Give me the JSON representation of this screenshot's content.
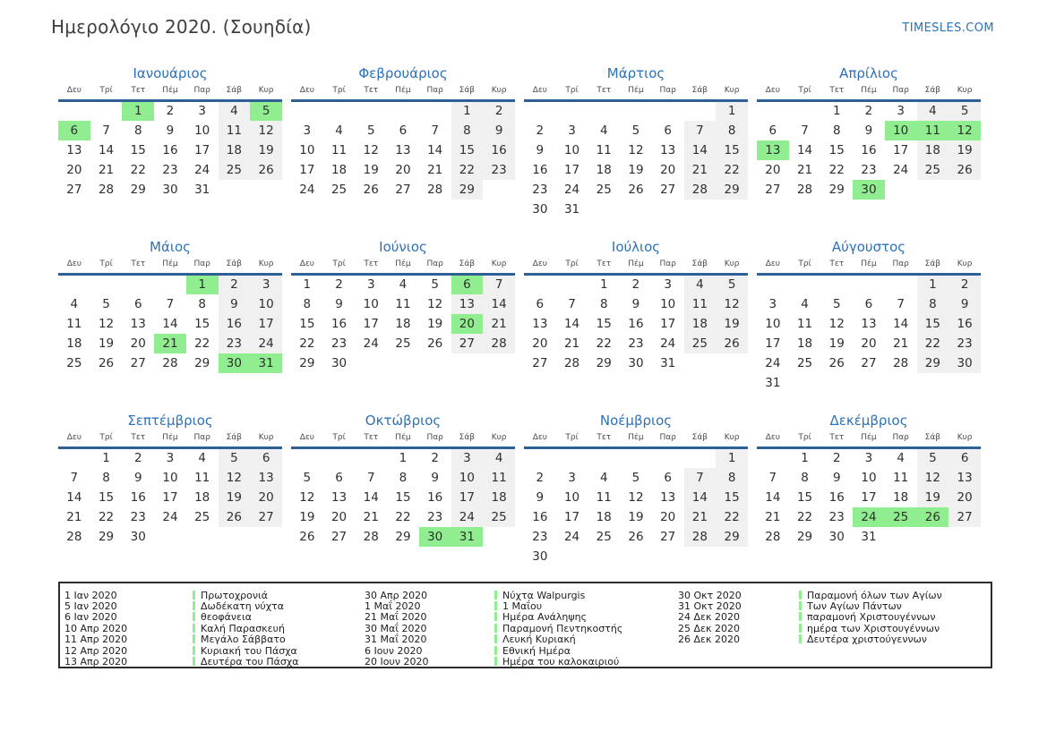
{
  "page": {
    "title": "Ημερολόγιο 2020. (Σουηδία)",
    "site_link": "TIMESLES.COM"
  },
  "calendar": {
    "day_headers": [
      "Δευ",
      "Τρί",
      "Τετ",
      "Πέμ",
      "Παρ",
      "Σάβ",
      "Κυρ"
    ],
    "months": [
      {
        "name": "Ιανουάριος",
        "first_dow": 2,
        "days": 31,
        "holidays": [
          1,
          5,
          6
        ]
      },
      {
        "name": "Φεβρουάριος",
        "first_dow": 5,
        "days": 29,
        "holidays": []
      },
      {
        "name": "Μάρτιος",
        "first_dow": 6,
        "days": 31,
        "holidays": []
      },
      {
        "name": "Απρίλιος",
        "first_dow": 2,
        "days": 30,
        "holidays": [
          10,
          11,
          12,
          13,
          30
        ]
      },
      {
        "name": "Μάιος",
        "first_dow": 4,
        "days": 31,
        "holidays": [
          1,
          21,
          30,
          31
        ]
      },
      {
        "name": "Ιούνιος",
        "first_dow": 0,
        "days": 30,
        "holidays": [
          6,
          20
        ]
      },
      {
        "name": "Ιούλιος",
        "first_dow": 2,
        "days": 31,
        "holidays": []
      },
      {
        "name": "Αύγουστος",
        "first_dow": 5,
        "days": 31,
        "holidays": []
      },
      {
        "name": "Σεπτέμβριος",
        "first_dow": 1,
        "days": 30,
        "holidays": []
      },
      {
        "name": "Οκτώβριος",
        "first_dow": 3,
        "days": 31,
        "holidays": [
          30,
          31
        ]
      },
      {
        "name": "Νοέμβριος",
        "first_dow": 6,
        "days": 30,
        "holidays": []
      },
      {
        "name": "Δεκέμβριος",
        "first_dow": 1,
        "days": 31,
        "holidays": [
          24,
          25,
          26
        ]
      }
    ]
  },
  "legend": {
    "groups": [
      {
        "entries": [
          {
            "date": "1 Ιαν 2020",
            "name": "Πρωτοχρονιά"
          },
          {
            "date": "5 Ιαν 2020",
            "name": "Δωδέκατη νύχτα"
          },
          {
            "date": "6 Ιαν 2020",
            "name": "θεοφάνεια"
          },
          {
            "date": "10 Απρ 2020",
            "name": "Καλή Παρασκευή"
          },
          {
            "date": "11 Απρ 2020",
            "name": "Μεγάλο Σάββατο"
          },
          {
            "date": "12 Απρ 2020",
            "name": "Κυριακή του Πάσχα"
          },
          {
            "date": "13 Απρ 2020",
            "name": "Δευτέρα του Πάσχα"
          }
        ]
      },
      {
        "entries": [
          {
            "date": "30 Απρ 2020",
            "name": "Νύχτα Walpurgis"
          },
          {
            "date": "1 Μαΐ 2020",
            "name": "1 Μαΐου"
          },
          {
            "date": "21 Μαΐ 2020",
            "name": "Ημέρα Ανάληψης"
          },
          {
            "date": "30 Μαΐ 2020",
            "name": "Παραμονή Πεντηκοστής"
          },
          {
            "date": "31 Μαΐ 2020",
            "name": "Λευκή Κυριακή"
          },
          {
            "date": "6 Ιουν 2020",
            "name": "Εθνική Ημέρα"
          },
          {
            "date": "20 Ιουν 2020",
            "name": "Ημέρα του καλοκαιριού"
          }
        ]
      },
      {
        "entries": [
          {
            "date": "30 Οκτ 2020",
            "name": "Παραμονή όλων των Αγίων"
          },
          {
            "date": "31 Οκτ 2020",
            "name": "Των Αγίων Πάντων"
          },
          {
            "date": "24 Δεκ 2020",
            "name": "παραμονή Χριστουγέννων"
          },
          {
            "date": "25 Δεκ 2020",
            "name": "ημέρα των Χριστουγέννων"
          },
          {
            "date": "26 Δεκ 2020",
            "name": "Δευτέρα χριστούγεννων"
          }
        ]
      }
    ]
  },
  "colors": {
    "accent_blue": "#2d72b8",
    "header_line_blue": "#2e6096",
    "holiday_green": "#90ee90",
    "weekend_gray": "#f0f0f0",
    "day_text": "#2f2f2f"
  }
}
